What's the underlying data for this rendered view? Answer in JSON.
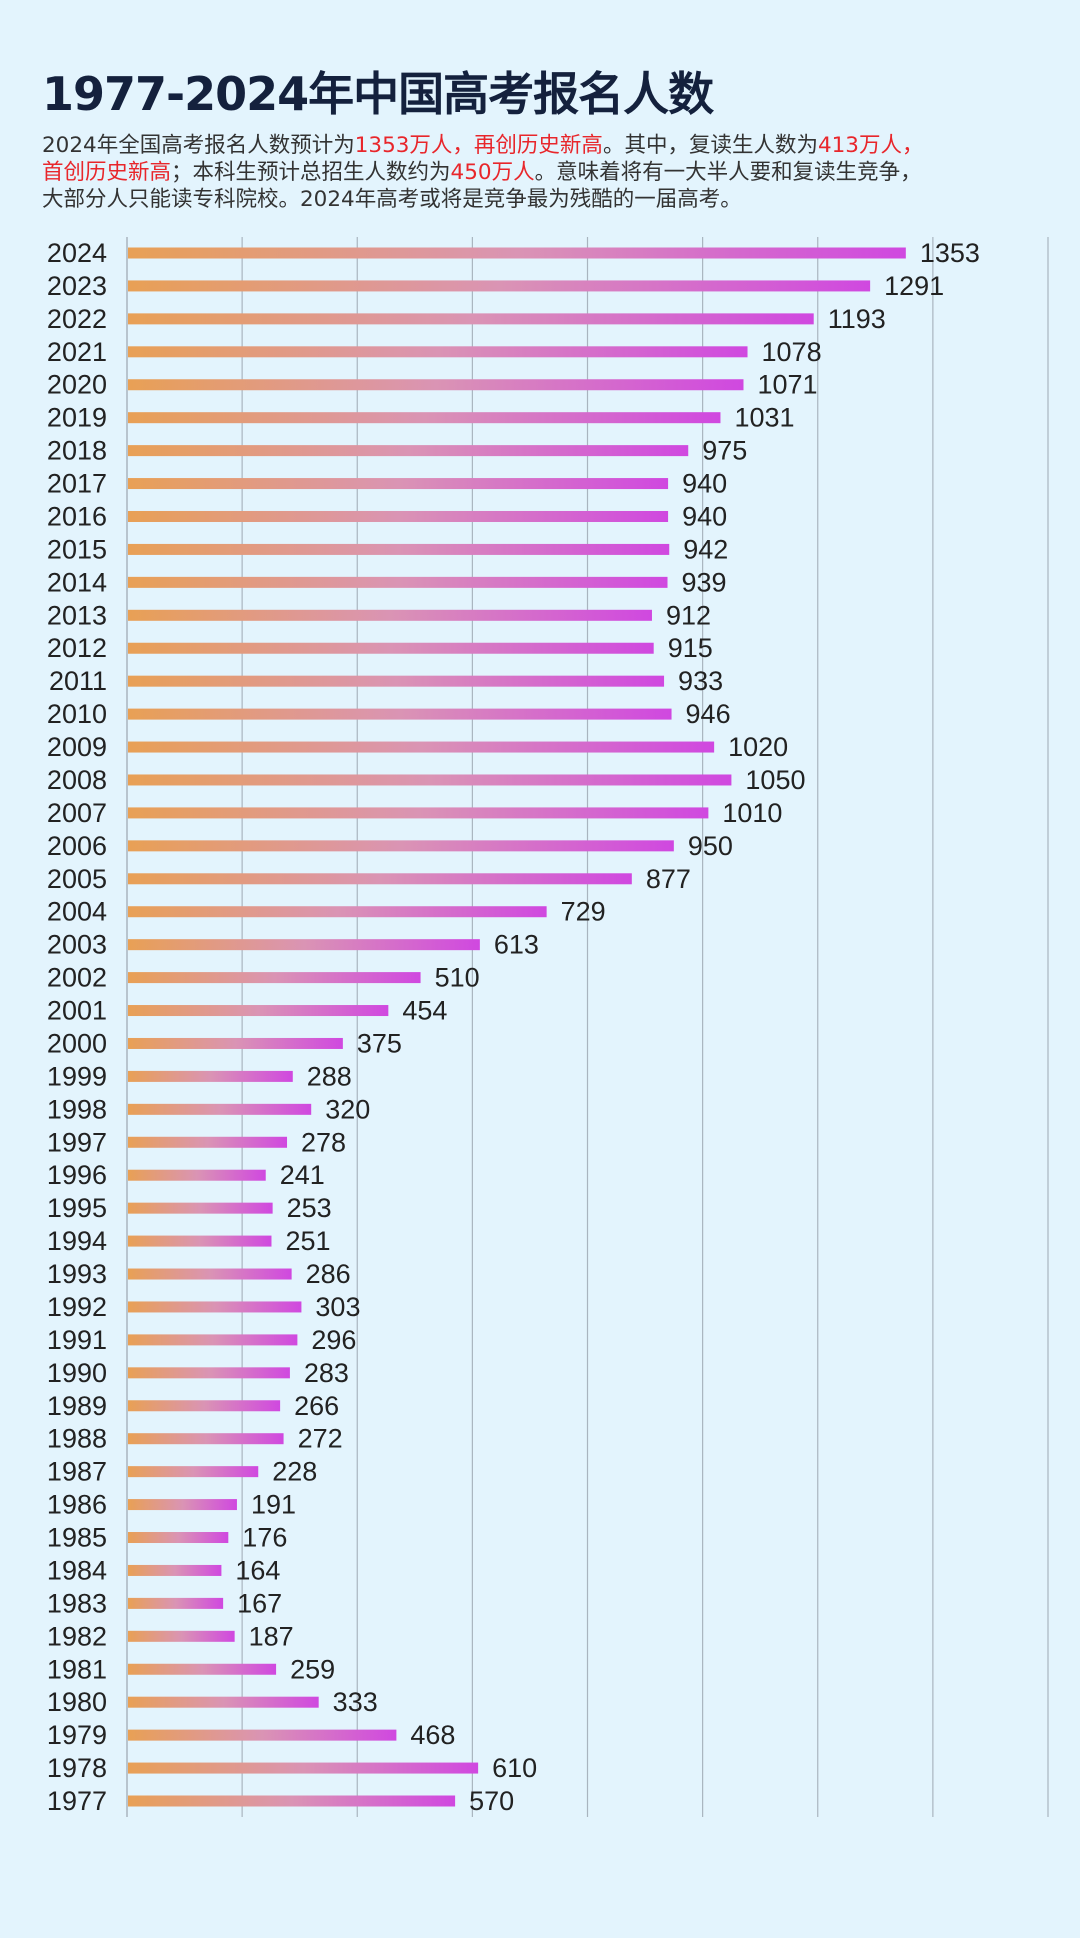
{
  "title": "1977-2024年中国高考报名人数",
  "subtitle_lines": [
    [
      {
        "text": "2024年全国高考报名人数预计为",
        "red": false
      },
      {
        "text": "1353万人，再创历史新高",
        "red": true
      },
      {
        "text": "。其中，复读生人数为",
        "red": false
      },
      {
        "text": "413万人，",
        "red": true
      }
    ],
    [
      {
        "text": "首创历史新高",
        "red": true
      },
      {
        "text": "；本科生预计总招生人数约为",
        "red": false
      },
      {
        "text": "450万人",
        "red": true
      },
      {
        "text": "。意味着将有一大半人要和复读生竞争，",
        "red": false
      }
    ],
    [
      {
        "text": "大部分人只能读专科院校。2024年高考或将是竞争最为残酷的一届高考。",
        "red": false
      }
    ]
  ],
  "colors": {
    "background": "#e3f4fd",
    "title": "#14213d",
    "highlight": "#e8262b",
    "bar_start": "#e8a055",
    "bar_mid": "#da94b4",
    "bar_end": "#d048e0",
    "grid": "#a9b4bf"
  },
  "chart_data": {
    "type": "bar",
    "orientation": "horizontal",
    "xlim": [
      0,
      1600
    ],
    "grid_step": 200,
    "grid": true,
    "tick_labels_shown": false,
    "categories": [
      "2024",
      "2023",
      "2022",
      "2021",
      "2020",
      "2019",
      "2018",
      "2017",
      "2016",
      "2015",
      "2014",
      "2013",
      "2012",
      "2011",
      "2010",
      "2009",
      "2008",
      "2007",
      "2006",
      "2005",
      "2004",
      "2003",
      "2002",
      "2001",
      "2000",
      "1999",
      "1998",
      "1997",
      "1996",
      "1995",
      "1994",
      "1993",
      "1992",
      "1991",
      "1990",
      "1989",
      "1988",
      "1987",
      "1986",
      "1985",
      "1984",
      "1983",
      "1982",
      "1981",
      "1980",
      "1979",
      "1978",
      "1977"
    ],
    "values": [
      1353,
      1291,
      1193,
      1078,
      1071,
      1031,
      975,
      940,
      940,
      942,
      939,
      912,
      915,
      933,
      946,
      1020,
      1050,
      1010,
      950,
      877,
      729,
      613,
      510,
      454,
      375,
      288,
      320,
      278,
      241,
      253,
      251,
      286,
      303,
      296,
      283,
      266,
      272,
      228,
      191,
      176,
      164,
      167,
      187,
      259,
      333,
      468,
      610,
      570
    ]
  }
}
